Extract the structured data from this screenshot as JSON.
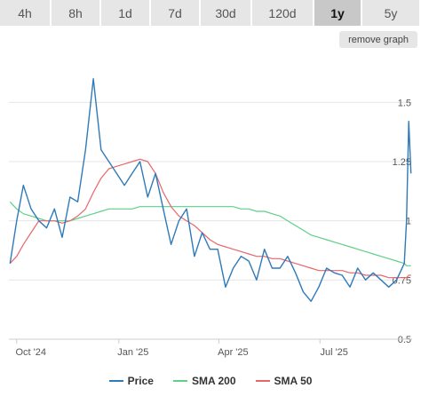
{
  "tabs": [
    {
      "label": "4h",
      "active": false
    },
    {
      "label": "8h",
      "active": false
    },
    {
      "label": "1d",
      "active": false
    },
    {
      "label": "7d",
      "active": false
    },
    {
      "label": "30d",
      "active": false
    },
    {
      "label": "120d",
      "active": false
    },
    {
      "label": "1y",
      "active": true
    },
    {
      "label": "5y",
      "active": false
    }
  ],
  "remove_graph_label": "remove graph",
  "colors": {
    "price": "#2f7ab8",
    "sma200": "#5fcf8a",
    "sma50": "#e8666a",
    "grid": "#e6e6e6",
    "axis_text": "#555555"
  },
  "chart_data": {
    "type": "line",
    "title": "",
    "xlabel": "",
    "ylabel": "",
    "x_axis": {
      "type": "date",
      "ticks": [
        "Oct '24",
        "Jan '25",
        "Apr '25",
        "Jul '25"
      ]
    },
    "ylim": [
      0.5,
      1.7
    ],
    "y_ticks": [
      0.5,
      0.75,
      1,
      1.25,
      1.5
    ],
    "y_tick_labels": [
      "0.5",
      "0.75",
      "1",
      "1.25",
      "1.5"
    ],
    "grid": true,
    "legend_position": "bottom",
    "x": [
      "2024-09-25",
      "2024-10-01",
      "2024-10-07",
      "2024-10-14",
      "2024-10-21",
      "2024-10-28",
      "2024-11-04",
      "2024-11-11",
      "2024-11-18",
      "2024-11-25",
      "2024-12-02",
      "2024-12-09",
      "2024-12-16",
      "2024-12-23",
      "2024-12-30",
      "2025-01-06",
      "2025-01-13",
      "2025-01-20",
      "2025-01-27",
      "2025-02-03",
      "2025-02-10",
      "2025-02-17",
      "2025-02-24",
      "2025-03-03",
      "2025-03-10",
      "2025-03-17",
      "2025-03-24",
      "2025-03-31",
      "2025-04-07",
      "2025-04-14",
      "2025-04-21",
      "2025-04-28",
      "2025-05-05",
      "2025-05-12",
      "2025-05-19",
      "2025-05-26",
      "2025-06-02",
      "2025-06-09",
      "2025-06-16",
      "2025-06-23",
      "2025-06-30",
      "2025-07-07",
      "2025-07-14",
      "2025-07-21",
      "2025-07-28",
      "2025-08-04",
      "2025-08-11",
      "2025-08-18",
      "2025-08-25",
      "2025-09-01",
      "2025-09-08",
      "2025-09-15",
      "2025-09-17",
      "2025-09-19",
      "2025-09-21"
    ],
    "series": [
      {
        "name": "Price",
        "values": [
          0.82,
          1.0,
          1.15,
          1.05,
          1.0,
          0.97,
          1.05,
          0.93,
          1.1,
          1.08,
          1.3,
          1.6,
          1.3,
          1.25,
          1.2,
          1.15,
          1.2,
          1.25,
          1.1,
          1.2,
          1.05,
          0.9,
          1.0,
          1.05,
          0.85,
          0.95,
          0.88,
          0.88,
          0.72,
          0.8,
          0.85,
          0.83,
          0.75,
          0.88,
          0.8,
          0.8,
          0.85,
          0.78,
          0.7,
          0.66,
          0.72,
          0.8,
          0.78,
          0.77,
          0.72,
          0.8,
          0.75,
          0.78,
          0.75,
          0.72,
          0.75,
          0.82,
          1.0,
          1.42,
          1.2
        ]
      },
      {
        "name": "SMA 200",
        "values": [
          1.08,
          1.05,
          1.03,
          1.02,
          1.01,
          1.0,
          1.0,
          1.0,
          1.0,
          1.01,
          1.02,
          1.03,
          1.04,
          1.05,
          1.05,
          1.05,
          1.05,
          1.06,
          1.06,
          1.06,
          1.06,
          1.06,
          1.06,
          1.06,
          1.06,
          1.06,
          1.06,
          1.06,
          1.06,
          1.06,
          1.05,
          1.05,
          1.04,
          1.04,
          1.03,
          1.02,
          1.0,
          0.98,
          0.96,
          0.94,
          0.93,
          0.92,
          0.91,
          0.9,
          0.89,
          0.88,
          0.87,
          0.86,
          0.85,
          0.84,
          0.83,
          0.82,
          0.81,
          0.81,
          0.81
        ]
      },
      {
        "name": "SMA 50",
        "values": [
          0.82,
          0.85,
          0.9,
          0.95,
          1.0,
          1.0,
          1.0,
          0.99,
          1.0,
          1.02,
          1.05,
          1.12,
          1.18,
          1.22,
          1.23,
          1.24,
          1.25,
          1.26,
          1.25,
          1.2,
          1.12,
          1.06,
          1.02,
          1.0,
          0.98,
          0.95,
          0.92,
          0.9,
          0.89,
          0.88,
          0.87,
          0.86,
          0.85,
          0.85,
          0.84,
          0.84,
          0.83,
          0.82,
          0.81,
          0.8,
          0.79,
          0.79,
          0.79,
          0.79,
          0.78,
          0.78,
          0.77,
          0.77,
          0.77,
          0.76,
          0.76,
          0.76,
          0.76,
          0.77,
          0.77
        ]
      }
    ]
  }
}
